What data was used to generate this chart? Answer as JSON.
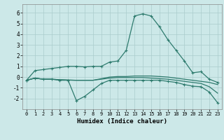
{
  "bg_color": "#cce8e8",
  "line_color": "#2e7b6e",
  "grid_color": "#aacccc",
  "xlabel": "Humidex (Indice chaleur)",
  "xlim": [
    -0.5,
    23.5
  ],
  "ylim": [
    -3,
    6.8
  ],
  "yticks": [
    -2,
    -1,
    0,
    1,
    2,
    3,
    4,
    5,
    6
  ],
  "xticks": [
    0,
    1,
    2,
    3,
    4,
    5,
    6,
    7,
    8,
    9,
    10,
    11,
    12,
    13,
    14,
    15,
    16,
    17,
    18,
    19,
    20,
    21,
    22,
    23
  ],
  "curve1_x": [
    0,
    1,
    2,
    3,
    4,
    5,
    6,
    7,
    8,
    9,
    10,
    11,
    12,
    13,
    14,
    15,
    16,
    17,
    18,
    19,
    20,
    21,
    22,
    23
  ],
  "curve1_y": [
    -0.3,
    0.6,
    0.7,
    0.8,
    0.9,
    1.0,
    1.0,
    0.95,
    1.0,
    1.0,
    1.4,
    1.5,
    2.5,
    5.7,
    5.9,
    5.7,
    4.7,
    3.5,
    2.5,
    1.5,
    0.4,
    0.5,
    -0.2,
    -0.5
  ],
  "curve2_x": [
    0,
    1,
    2,
    3,
    4,
    5,
    6,
    7,
    8,
    9,
    10,
    11,
    12,
    13,
    14,
    15,
    16,
    17,
    18,
    19,
    20,
    21,
    22,
    23
  ],
  "curve2_y": [
    -0.3,
    -0.1,
    -0.2,
    -0.2,
    -0.3,
    -0.3,
    -2.2,
    -1.8,
    -1.2,
    -0.6,
    -0.3,
    -0.3,
    -0.3,
    -0.3,
    -0.3,
    -0.3,
    -0.3,
    -0.4,
    -0.5,
    -0.7,
    -0.85,
    -0.9,
    -1.4,
    -2.4
  ],
  "curve3_x": [
    0,
    1,
    2,
    3,
    4,
    5,
    6,
    7,
    8,
    9,
    10,
    11,
    12,
    13,
    14,
    15,
    16,
    17,
    18,
    19,
    20,
    21,
    22,
    23
  ],
  "curve3_y": [
    -0.3,
    -0.1,
    -0.2,
    -0.2,
    -0.25,
    -0.28,
    -0.3,
    -0.3,
    -0.3,
    -0.15,
    0.0,
    0.05,
    0.05,
    0.1,
    0.1,
    0.1,
    0.05,
    0.0,
    -0.1,
    -0.2,
    -0.3,
    -0.4,
    -0.5,
    -0.7
  ],
  "curve4_x": [
    0,
    1,
    2,
    3,
    4,
    5,
    6,
    7,
    8,
    9,
    10,
    11,
    12,
    13,
    14,
    15,
    16,
    17,
    18,
    19,
    20,
    21,
    22,
    23
  ],
  "curve4_y": [
    -0.3,
    -0.1,
    -0.2,
    -0.2,
    -0.25,
    -0.28,
    -0.3,
    -0.3,
    -0.3,
    -0.2,
    -0.1,
    -0.05,
    -0.05,
    -0.05,
    -0.05,
    -0.1,
    -0.15,
    -0.2,
    -0.3,
    -0.4,
    -0.5,
    -0.6,
    -0.9,
    -1.5
  ]
}
